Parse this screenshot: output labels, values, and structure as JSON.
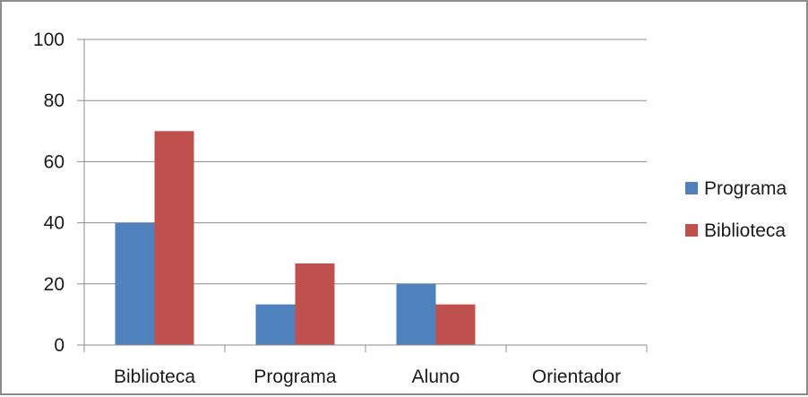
{
  "chart_data": {
    "type": "bar",
    "title": "",
    "xlabel": "",
    "ylabel": "",
    "categories": [
      "Biblioteca",
      "Programa",
      "Aluno",
      "Orientador"
    ],
    "series": [
      {
        "name": "Programa",
        "values": [
          40,
          13.3,
          20,
          0
        ],
        "color": "#4f81bd"
      },
      {
        "name": "Biblioteca",
        "values": [
          70,
          26.7,
          13.3,
          0
        ],
        "color": "#c0504d"
      }
    ],
    "ylim": [
      0,
      100
    ],
    "yticks": [
      0,
      20,
      40,
      60,
      80,
      100
    ],
    "grid": true,
    "legend_position": "right"
  }
}
